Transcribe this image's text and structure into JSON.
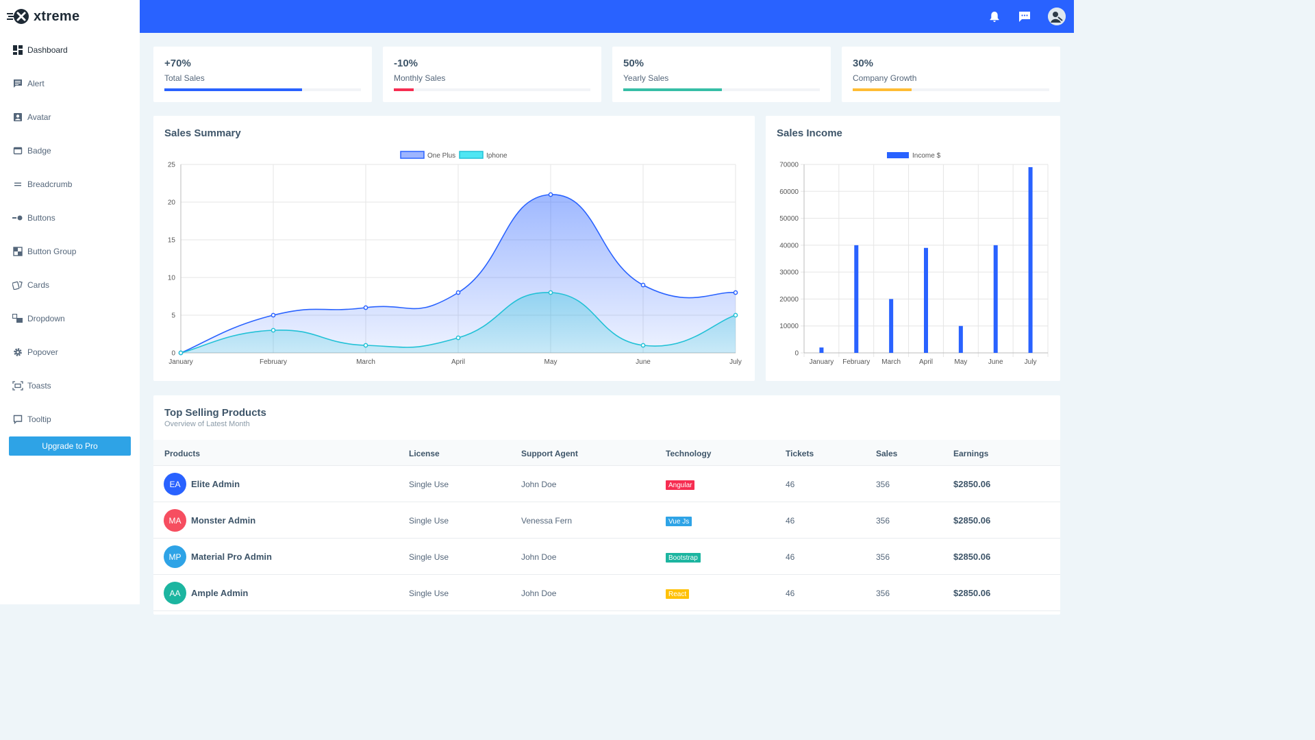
{
  "brand": {
    "name": "xtreme"
  },
  "sidebar": {
    "items": [
      {
        "label": "Dashboard",
        "icon": "dashboard-icon",
        "active": true
      },
      {
        "label": "Alert",
        "icon": "alert-icon"
      },
      {
        "label": "Avatar",
        "icon": "avatar-icon"
      },
      {
        "label": "Badge",
        "icon": "badge-icon"
      },
      {
        "label": "Breadcrumb",
        "icon": "breadcrumb-icon"
      },
      {
        "label": "Buttons",
        "icon": "buttons-icon"
      },
      {
        "label": "Button Group",
        "icon": "button-group-icon"
      },
      {
        "label": "Cards",
        "icon": "cards-icon"
      },
      {
        "label": "Dropdown",
        "icon": "dropdown-icon"
      },
      {
        "label": "Popover",
        "icon": "gear-icon"
      },
      {
        "label": "Toasts",
        "icon": "toasts-icon"
      },
      {
        "label": "Tooltip",
        "icon": "tooltip-icon"
      }
    ],
    "upgrade_label": "Upgrade to Pro"
  },
  "topbar": {
    "icons": [
      "bell-icon",
      "message-icon",
      "user-avatar-icon"
    ]
  },
  "stats": [
    {
      "value": "+70%",
      "label": "Total Sales",
      "progress": 0.7,
      "color": "#2962ff"
    },
    {
      "value": "-10%",
      "label": "Monthly Sales",
      "progress": 0.1,
      "color": "#f62d51"
    },
    {
      "value": "50%",
      "label": "Yearly Sales",
      "progress": 0.5,
      "color": "#36bea6"
    },
    {
      "value": "30%",
      "label": "Company Growth",
      "progress": 0.3,
      "color": "#ffbc34"
    }
  ],
  "sales_summary": {
    "title": "Sales Summary"
  },
  "sales_income": {
    "title": "Sales Income"
  },
  "chart_data": [
    {
      "type": "area",
      "title": "Sales Summary",
      "categories": [
        "January",
        "February",
        "March",
        "April",
        "May",
        "June",
        "July"
      ],
      "series": [
        {
          "name": "One Plus",
          "values": [
            0,
            5,
            6,
            8,
            21,
            9,
            8
          ],
          "color": "#2962ff"
        },
        {
          "name": "Iphone",
          "values": [
            0,
            3,
            1,
            2,
            8,
            1,
            5
          ],
          "color": "#21c1d6"
        }
      ],
      "ylim": [
        0,
        25
      ],
      "yticks": [
        0,
        5,
        10,
        15,
        20,
        25
      ],
      "grid": true,
      "legend": "top-center"
    },
    {
      "type": "bar",
      "title": "Sales Income",
      "categories": [
        "January",
        "February",
        "March",
        "April",
        "May",
        "June",
        "July"
      ],
      "series": [
        {
          "name": "Income $",
          "values": [
            2000,
            40000,
            20000,
            39000,
            10000,
            40000,
            69000
          ],
          "color": "#2962ff"
        }
      ],
      "ylim": [
        0,
        70000
      ],
      "yticks": [
        0,
        10000,
        20000,
        30000,
        40000,
        50000,
        60000,
        70000
      ],
      "grid": true,
      "legend": "top-center"
    }
  ],
  "products": {
    "title": "Top Selling Products",
    "subtitle": "Overview of Latest Month",
    "columns": [
      "Products",
      "License",
      "Support Agent",
      "Technology",
      "Tickets",
      "Sales",
      "Earnings"
    ],
    "rows": [
      {
        "initials": "EA",
        "avatar_color": "#2962ff",
        "name": "Elite Admin",
        "license": "Single Use",
        "agent": "John Doe",
        "tech": "Angular",
        "tech_color": "#f62d51",
        "tickets": "46",
        "sales": "356",
        "earnings": "$2850.06"
      },
      {
        "initials": "MA",
        "avatar_color": "#f64e60",
        "name": "Monster Admin",
        "license": "Single Use",
        "agent": "Venessa Fern",
        "tech": "Vue Js",
        "tech_color": "#2ea3e6",
        "tickets": "46",
        "sales": "356",
        "earnings": "$2850.06"
      },
      {
        "initials": "MP",
        "avatar_color": "#2ea3e6",
        "name": "Material Pro Admin",
        "license": "Single Use",
        "agent": "John Doe",
        "tech": "Bootstrap",
        "tech_color": "#1cb5a0",
        "tickets": "46",
        "sales": "356",
        "earnings": "$2850.06"
      },
      {
        "initials": "AA",
        "avatar_color": "#1cb5a0",
        "name": "Ample Admin",
        "license": "Single Use",
        "agent": "John Doe",
        "tech": "React",
        "tech_color": "#ffc107",
        "tickets": "46",
        "sales": "356",
        "earnings": "$2850.06"
      }
    ]
  }
}
